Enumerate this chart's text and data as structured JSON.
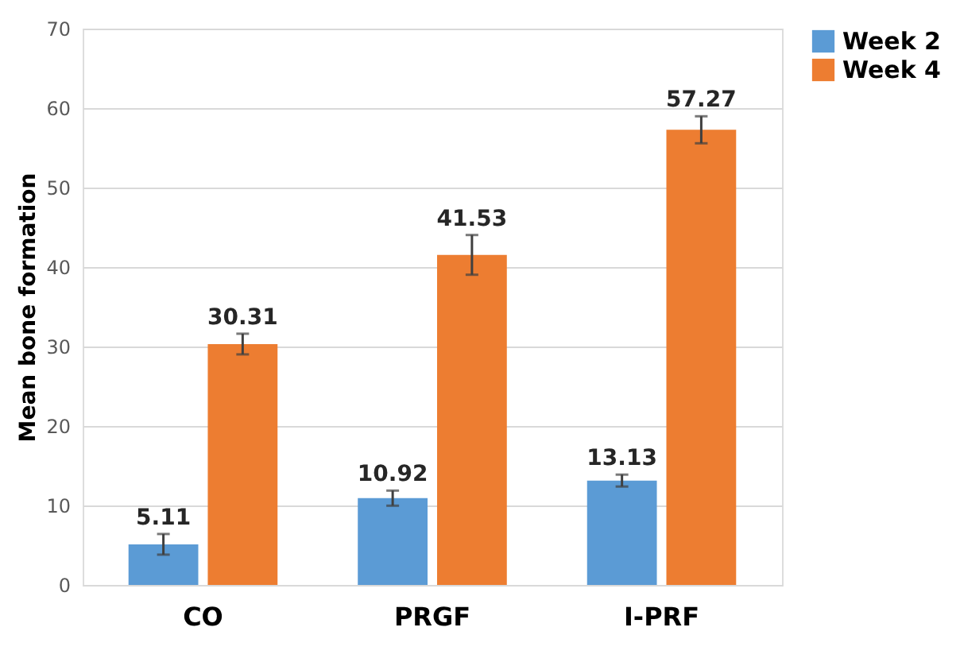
{
  "chart_data": {
    "type": "bar",
    "ylabel": "Mean bone formation",
    "categories": [
      "CO",
      "PRGF",
      "I-PRF"
    ],
    "series": [
      {
        "name": "Week 2",
        "color": "#5b9bd5",
        "values": [
          5.11,
          10.92,
          13.13
        ],
        "errors": [
          1.3,
          0.95,
          0.75
        ]
      },
      {
        "name": "Week 4",
        "color": "#ed7d31",
        "values": [
          30.31,
          41.53,
          57.27
        ],
        "errors": [
          1.3,
          2.5,
          1.7
        ]
      }
    ],
    "ylim": [
      0,
      70
    ],
    "yticks": [
      0,
      10,
      20,
      30,
      40,
      50,
      60,
      70
    ],
    "grid": "y",
    "legend": "right",
    "data_labels": true
  }
}
